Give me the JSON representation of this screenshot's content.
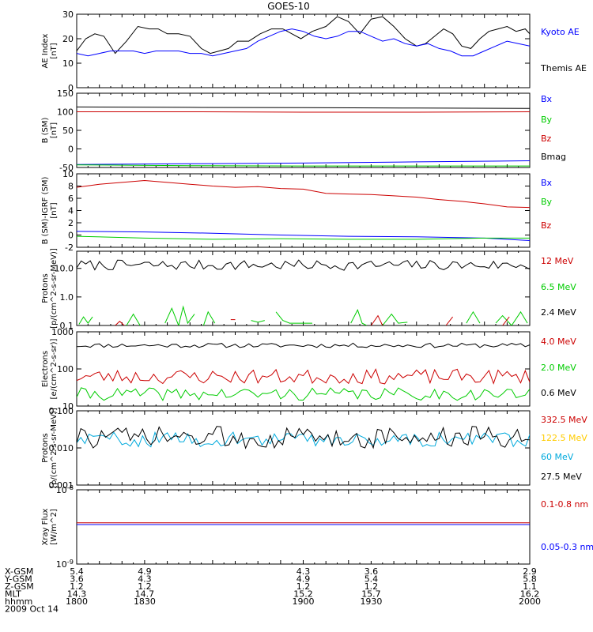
{
  "title": "GOES-10",
  "chart_data": [
    {
      "type": "line",
      "ylabel": "AE Index\n[nT]",
      "yscale": "linear",
      "ylim": [
        0,
        30
      ],
      "yticks": [
        0,
        10,
        20,
        30
      ],
      "legend": [
        {
          "label": "Kyoto AE",
          "color": "#0000ff"
        },
        {
          "label": "Themis AE",
          "color": "#000000"
        }
      ],
      "series": [
        {
          "name": "Themis AE",
          "color": "#000000",
          "x": [
            1800,
            1804,
            1808,
            1812,
            1817,
            1822,
            1827,
            1832,
            1836,
            1840,
            1845,
            1850,
            1855,
            1859,
            1863,
            1867,
            1871,
            1876,
            1881,
            1886,
            1891,
            1895,
            1899,
            1904,
            1910,
            1915,
            1920,
            1925,
            1930,
            1935,
            1940,
            1945,
            1950,
            1954,
            1958,
            1962,
            1966,
            1970,
            1974,
            1978,
            1982,
            1986,
            1990,
            1994,
            1998,
            2000
          ],
          "values": [
            15,
            20,
            22,
            21,
            14,
            19,
            25,
            24,
            24,
            22,
            22,
            21,
            16,
            14,
            15,
            16,
            19,
            19,
            22,
            24,
            24,
            22,
            20,
            23,
            25,
            29,
            27,
            22,
            28,
            29,
            25,
            20,
            17,
            18,
            21,
            24,
            22,
            17,
            16,
            20,
            23,
            24,
            25,
            23,
            24,
            22
          ]
        },
        {
          "name": "Kyoto AE",
          "color": "#0000ff",
          "x": [
            1800,
            1805,
            1810,
            1815,
            1820,
            1825,
            1830,
            1835,
            1840,
            1845,
            1850,
            1855,
            1860,
            1865,
            1870,
            1875,
            1880,
            1885,
            1890,
            1895,
            1900,
            1905,
            1910,
            1915,
            1920,
            1925,
            1930,
            1935,
            1940,
            1945,
            1950,
            1955,
            1960,
            1965,
            1970,
            1975,
            1980,
            1985,
            1990,
            1995,
            2000
          ],
          "values": [
            14,
            13,
            14,
            15,
            15,
            15,
            14,
            15,
            15,
            15,
            14,
            14,
            13,
            14,
            15,
            16,
            19,
            21,
            23,
            24,
            23,
            21,
            20,
            21,
            23,
            23,
            21,
            19,
            20,
            18,
            17,
            18,
            16,
            15,
            13,
            13,
            15,
            17,
            19,
            18,
            17
          ]
        }
      ]
    },
    {
      "type": "line",
      "ylabel": "B (SM)\n[nT]",
      "yscale": "linear",
      "ylim": [
        -50,
        150
      ],
      "yticks": [
        -50,
        0,
        50,
        100,
        150
      ],
      "legend": [
        {
          "label": "Bx",
          "color": "#0000ff"
        },
        {
          "label": "By",
          "color": "#00cc00"
        },
        {
          "label": "Bz",
          "color": "#cc0000"
        },
        {
          "label": "Bmag",
          "color": "#000000"
        }
      ],
      "series": [
        {
          "name": "Bmag",
          "color": "#000000",
          "x": [
            1800,
            1850,
            1900,
            1950,
            2000
          ],
          "values": [
            113,
            112,
            111,
            110,
            109
          ]
        },
        {
          "name": "Bz",
          "color": "#cc0000",
          "x": [
            1800,
            1850,
            1900,
            1950,
            2000
          ],
          "values": [
            100,
            100,
            99,
            99,
            100
          ]
        },
        {
          "name": "Bx",
          "color": "#0000ff",
          "x": [
            1800,
            1850,
            1900,
            1950,
            2000
          ],
          "values": [
            -42,
            -40,
            -38,
            -35,
            -32
          ]
        },
        {
          "name": "By",
          "color": "#00cc00",
          "x": [
            1800,
            1850,
            1900,
            1950,
            2000
          ],
          "values": [
            -43,
            -45,
            -46,
            -46,
            -46
          ]
        }
      ]
    },
    {
      "type": "line",
      "ylabel": "B (SM)-IGRF (SM)\n[nT]",
      "yscale": "linear",
      "ylim": [
        -2,
        10
      ],
      "yticks": [
        -2,
        0,
        2,
        4,
        6,
        8,
        10
      ],
      "legend": [
        {
          "label": "Bx",
          "color": "#0000ff"
        },
        {
          "label": "By",
          "color": "#00cc00"
        },
        {
          "label": "Bz",
          "color": "#cc0000"
        }
      ],
      "series": [
        {
          "name": "Bz",
          "color": "#cc0000",
          "x": [
            1800,
            1810,
            1820,
            1830,
            1840,
            1850,
            1860,
            1870,
            1880,
            1890,
            1900,
            1910,
            1920,
            1930,
            1940,
            1950,
            1960,
            1970,
            1980,
            1990,
            2000
          ],
          "values": [
            7.8,
            8.3,
            8.6,
            8.9,
            8.6,
            8.3,
            8.0,
            7.8,
            7.9,
            7.6,
            7.5,
            6.8,
            6.7,
            6.6,
            6.4,
            6.2,
            5.8,
            5.5,
            5.1,
            4.6,
            4.5
          ]
        },
        {
          "name": "Bx",
          "color": "#0000ff",
          "x": [
            1800,
            1830,
            1860,
            1890,
            1920,
            1950,
            1980,
            2000
          ],
          "values": [
            0.6,
            0.5,
            0.3,
            0.0,
            -0.2,
            -0.3,
            -0.5,
            -0.9
          ]
        },
        {
          "name": "By",
          "color": "#00cc00",
          "x": [
            1800,
            1830,
            1860,
            1890,
            1920,
            1950,
            1980,
            2000
          ],
          "values": [
            -0.2,
            -0.5,
            -0.7,
            -0.6,
            -0.7,
            -0.7,
            -0.5,
            -0.5
          ]
        }
      ]
    },
    {
      "type": "line",
      "ylabel": "Protons\n[p/(cm^2-s-sr-MeV)]",
      "yscale": "log",
      "ylim": [
        0.1,
        40
      ],
      "yticks": [
        0.1,
        1.0,
        10.0
      ],
      "ytick_labels": [
        "0.1",
        "1.0",
        "10.0"
      ],
      "legend": [
        {
          "label": "12 MeV",
          "color": "#cc0000"
        },
        {
          "label": "6.5 MeV",
          "color": "#00cc00"
        },
        {
          "label": "2.4 MeV",
          "color": "#000000"
        }
      ],
      "series": [
        {
          "name": "2.4 MeV",
          "color": "#000000",
          "noise": {
            "base": 13,
            "amp": 0.18,
            "seed": 7,
            "n": 100,
            "log": true
          }
        },
        {
          "name": "6.5 MeV",
          "color": "#00cc00",
          "segments": [
            {
              "x": [
                1801,
                1803,
                1805,
                1807
              ],
              "values": [
                0.11,
                0.2,
                0.12,
                0.2
              ]
            },
            {
              "x": [
                1822,
                1825,
                1828
              ],
              "values": [
                0.1,
                0.25,
                0.1
              ]
            },
            {
              "x": [
                1839,
                1842,
                1845,
                1847,
                1849,
                1852
              ],
              "values": [
                0.12,
                0.4,
                0.1,
                0.45,
                0.12,
                0.25
              ]
            },
            {
              "x": [
                1856,
                1858,
                1861
              ],
              "values": [
                0.1,
                0.3,
                0.12
              ]
            },
            {
              "x": [
                1877,
                1880,
                1883
              ],
              "values": [
                0.15,
                0.13,
                0.15
              ]
            },
            {
              "x": [
                1888,
                1891,
                1894,
                1904
              ],
              "values": [
                0.3,
                0.15,
                0.12,
                0.12
              ]
            },
            {
              "x": [
                1921,
                1924,
                1926,
                1928
              ],
              "values": [
                0.12,
                0.35,
                0.12,
                0.1
              ]
            },
            {
              "x": [
                1935,
                1939,
                1942,
                1946
              ],
              "values": [
                0.1,
                0.25,
                0.12,
                0.13
              ]
            },
            {
              "x": [
                1972,
                1975,
                1978
              ],
              "values": [
                0.12,
                0.3,
                0.12
              ]
            },
            {
              "x": [
                1985,
                1988,
                1992,
                1996,
                1999
              ],
              "values": [
                0.12,
                0.22,
                0.1,
                0.3,
                0.12
              ]
            }
          ]
        },
        {
          "name": "12 MeV",
          "color": "#cc0000",
          "segments": [
            {
              "x": [
                1817,
                1819,
                1821
              ],
              "values": [
                0.1,
                0.14,
                0.1
              ]
            },
            {
              "x": [
                1868,
                1870
              ],
              "values": [
                0.16,
                0.16
              ]
            },
            {
              "x": [
                1930,
                1933,
                1935
              ],
              "values": [
                0.1,
                0.22,
                0.1
              ]
            },
            {
              "x": [
                1963,
                1966
              ],
              "values": [
                0.1,
                0.2
              ]
            },
            {
              "x": [
                1988,
                1991
              ],
              "values": [
                0.1,
                0.2
              ]
            }
          ]
        }
      ]
    },
    {
      "type": "line",
      "ylabel": "Electrons\n[e/(cm^2-s-sr)]",
      "yscale": "log",
      "ylim": [
        10,
        1000
      ],
      "yticks": [
        10,
        100,
        1000
      ],
      "legend": [
        {
          "label": "4.0 MeV",
          "color": "#cc0000"
        },
        {
          "label": "2.0 MeV",
          "color": "#00cc00"
        },
        {
          "label": "0.6 MeV",
          "color": "#000000"
        }
      ],
      "series": [
        {
          "name": "0.6 MeV",
          "color": "#000000",
          "noise": {
            "base": 430,
            "amp": 0.06,
            "seed": 11,
            "n": 100,
            "log": true
          }
        },
        {
          "name": "4.0 MeV",
          "color": "#cc0000",
          "noise": {
            "base": 62,
            "amp": 0.2,
            "seed": 23,
            "n": 100,
            "log": true
          }
        },
        {
          "name": "2.0 MeV",
          "color": "#00cc00",
          "noise": {
            "base": 21,
            "amp": 0.17,
            "seed": 41,
            "n": 100,
            "log": true
          }
        }
      ]
    },
    {
      "type": "line",
      "ylabel": "Protons\n[p/(cm^2-s-sr-MeV)]",
      "yscale": "log",
      "ylim": [
        0.001,
        0.1
      ],
      "yticks": [
        0.001,
        0.01,
        0.1
      ],
      "ytick_labels": [
        "0.001",
        "0.010",
        "0.100"
      ],
      "legend": [
        {
          "label": "332.5 MeV",
          "color": "#cc0000"
        },
        {
          "label": "122.5 MeV",
          "color": "#ffcc00"
        },
        {
          "label": "60 MeV",
          "color": "#00aadd"
        },
        {
          "label": "27.5 MeV",
          "color": "#000000"
        }
      ],
      "series": [
        {
          "name": "60 MeV",
          "color": "#00aadd",
          "noise": {
            "base": 0.017,
            "amp": 0.2,
            "seed": 59,
            "n": 110,
            "log": true
          }
        },
        {
          "name": "27.5 MeV",
          "color": "#000000",
          "noise": {
            "base": 0.019,
            "amp": 0.3,
            "seed": 73,
            "n": 110,
            "log": true
          }
        }
      ]
    },
    {
      "type": "line",
      "ylabel": "Xray Flux\n[W/m^2]",
      "yscale": "log",
      "ylim": [
        1e-09,
        1e-08
      ],
      "yticks": [
        1e-09,
        1e-08
      ],
      "ytick_labels": [
        "10^-9",
        "10^-8"
      ],
      "legend": [
        {
          "label": "0.1-0.8 nm",
          "color": "#cc0000"
        },
        {
          "label": "0.05-0.3 nm",
          "color": "#0000ff"
        }
      ],
      "series": [
        {
          "name": "0.1-0.8 nm",
          "color": "#cc0000",
          "x": [
            1800,
            1900,
            2000
          ],
          "values": [
            3.6e-09,
            3.6e-09,
            3.6e-09
          ]
        },
        {
          "name": "0.05-0.3 nm",
          "color": "#0000ff",
          "x": [
            1800,
            1900,
            2000
          ],
          "values": [
            3.4e-09,
            3.4e-09,
            3.4e-09
          ]
        }
      ]
    }
  ],
  "xaxis": {
    "xlim": [
      1800,
      2000
    ],
    "major_ticks": [
      1800,
      1830,
      1900,
      1930,
      2000
    ],
    "rows": [
      {
        "label": "X-GSM",
        "values": [
          "5.4",
          "4.9",
          "4.3",
          "3.6",
          "2.9"
        ]
      },
      {
        "label": "Y-GSM",
        "values": [
          "3.6",
          "4.3",
          "4.9",
          "5.4",
          "5.8"
        ]
      },
      {
        "label": "Z-GSM",
        "values": [
          "1.2",
          "1.2",
          "1.2",
          "1.2",
          "1.1"
        ]
      },
      {
        "label": "MLT",
        "values": [
          "14.3",
          "14.7",
          "15.2",
          "15.7",
          "16.2"
        ]
      },
      {
        "label": "hhmm",
        "values": [
          "1800",
          "1830",
          "1900",
          "1930",
          "2000"
        ]
      }
    ],
    "date": "2009 Oct 14"
  }
}
